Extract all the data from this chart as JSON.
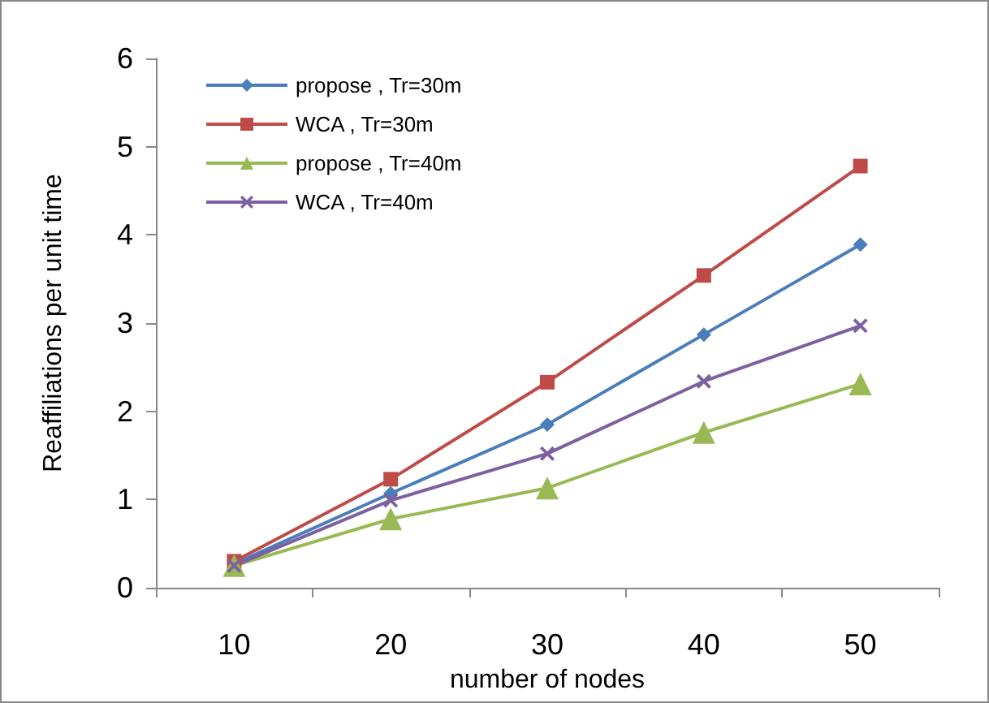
{
  "chart_data": {
    "type": "line",
    "xlabel": "number of nodes",
    "ylabel": "Reaffiliations per unit time",
    "categories": [
      "10",
      "20",
      "30",
      "40",
      "50"
    ],
    "series": [
      {
        "name": "propose , Tr=30m",
        "color": "#4a7ebb",
        "marker": "diamond",
        "values": [
          0.27,
          1.07,
          1.85,
          2.87,
          3.89
        ]
      },
      {
        "name": "WCA , Tr=30m",
        "color": "#be4b48",
        "marker": "square",
        "values": [
          0.3,
          1.23,
          2.33,
          3.54,
          4.78
        ]
      },
      {
        "name": "propose , Tr=40m",
        "color": "#98b954",
        "marker": "triangle",
        "values": [
          0.25,
          0.78,
          1.13,
          1.76,
          2.31
        ]
      },
      {
        "name": "WCA , Tr=40m",
        "color": "#7d60a0",
        "marker": "cross",
        "values": [
          0.25,
          0.99,
          1.52,
          2.34,
          2.97
        ]
      }
    ],
    "ylim": [
      0,
      6
    ],
    "yticks": [
      0,
      1,
      2,
      3,
      4,
      5,
      6
    ],
    "grid": false,
    "legend": "top left"
  }
}
